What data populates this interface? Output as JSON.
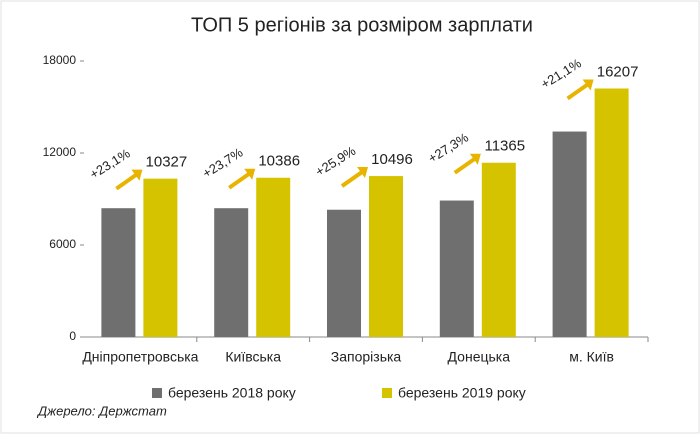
{
  "chart_data": {
    "type": "bar",
    "title": "ТОП 5 регіонів за розміром зарплати",
    "categories": [
      "Дніпропетровська",
      "Київська",
      "Запорізька",
      "Донецька",
      "м. Київ"
    ],
    "series": [
      {
        "name": "березень 2018 року",
        "color": "#706f6f",
        "values": [
          8400,
          8400,
          8300,
          8900,
          13400
        ]
      },
      {
        "name": "березень 2019 року",
        "color": "#d6c300",
        "values": [
          10327,
          10386,
          10496,
          11365,
          16207
        ]
      }
    ],
    "annotations": [
      "+23,1%",
      "+23,7%",
      "+25,9%",
      "+27,3%",
      "+21,1%"
    ],
    "ylim": [
      0,
      18000
    ],
    "yticks": [
      0,
      6000,
      12000,
      18000
    ],
    "grid": false,
    "source": "Джерело: Держстат"
  }
}
